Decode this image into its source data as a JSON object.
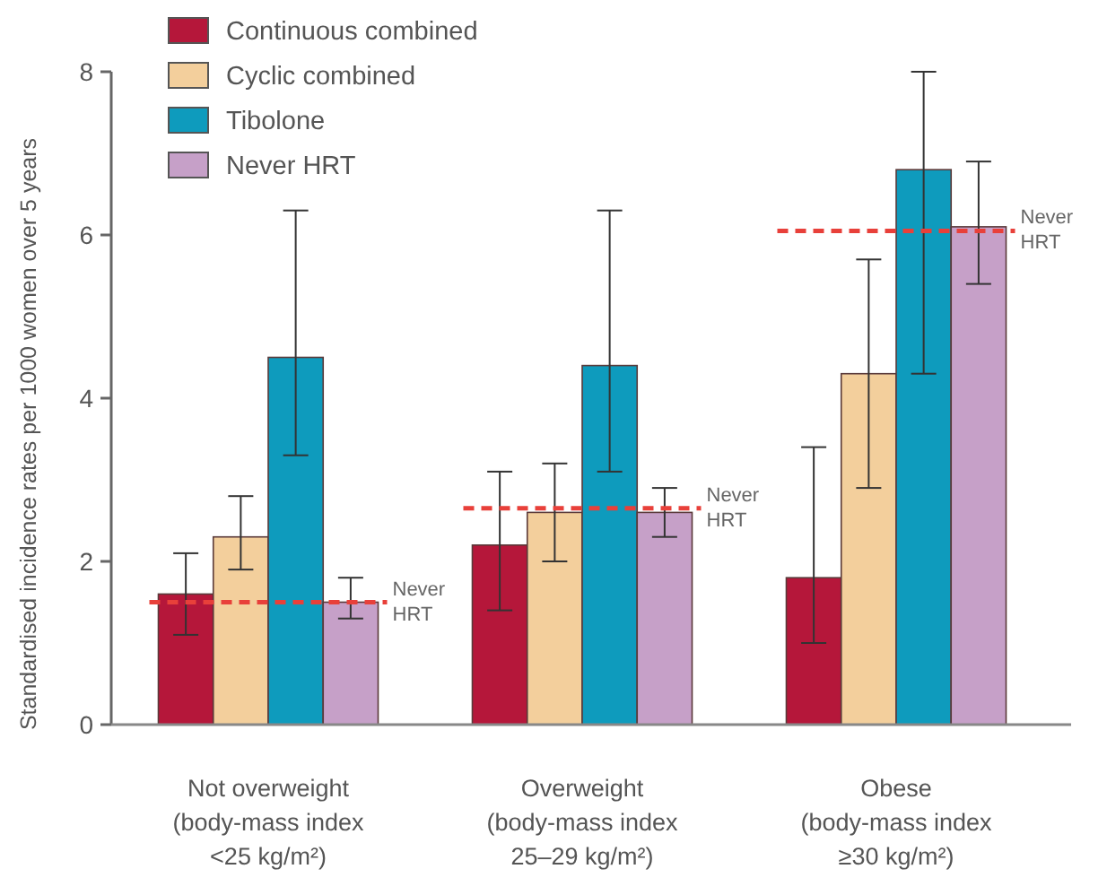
{
  "chart_data": {
    "type": "bar",
    "ylabel": "Standardised incidence rates per 1000 women over 5 years",
    "categories": [
      "Not overweight\n(body-mass index\n<25 kg/m²)",
      "Overweight\n(body-mass index\n25–29 kg/m²)",
      "Obese\n(body-mass index\n≥30 kg/m²)"
    ],
    "series": [
      {
        "name": "Continuous combined",
        "color": "#b5173a",
        "values": [
          1.6,
          2.2,
          1.8
        ],
        "errors": [
          [
            1.1,
            2.1
          ],
          [
            1.4,
            3.1
          ],
          [
            1.0,
            3.4
          ]
        ]
      },
      {
        "name": "Cyclic combined",
        "color": "#f3cf9c",
        "values": [
          2.3,
          2.6,
          4.3
        ],
        "errors": [
          [
            1.9,
            2.8
          ],
          [
            2.0,
            3.2
          ],
          [
            2.9,
            5.7
          ]
        ]
      },
      {
        "name": "Tibolone",
        "color": "#0e9bbd",
        "values": [
          4.5,
          4.4,
          6.8
        ],
        "errors": [
          [
            3.3,
            6.3
          ],
          [
            3.1,
            6.3
          ],
          [
            4.3,
            8.0
          ]
        ]
      },
      {
        "name": "Never HRT",
        "color": "#c6a0c8",
        "values": [
          1.5,
          2.6,
          6.1
        ],
        "errors": [
          [
            1.3,
            1.8
          ],
          [
            2.3,
            2.9
          ],
          [
            5.4,
            6.9
          ]
        ]
      }
    ],
    "ref_lines": [
      {
        "axis": "y",
        "value": 1.5,
        "label": "Never\nHRT",
        "color": "#e8403a",
        "line_style": "dashed"
      },
      {
        "axis": "y",
        "value": 2.65,
        "label": "Never\nHRT",
        "color": "#e8403a",
        "line_style": "dashed"
      },
      {
        "axis": "y",
        "value": 6.05,
        "label": "Never\nHRT",
        "color": "#e8403a",
        "line_style": "dashed"
      }
    ],
    "ylim": [
      0,
      8
    ],
    "yticks": [
      0,
      2,
      4,
      6,
      8
    ],
    "grid": false,
    "legend": "top left"
  }
}
